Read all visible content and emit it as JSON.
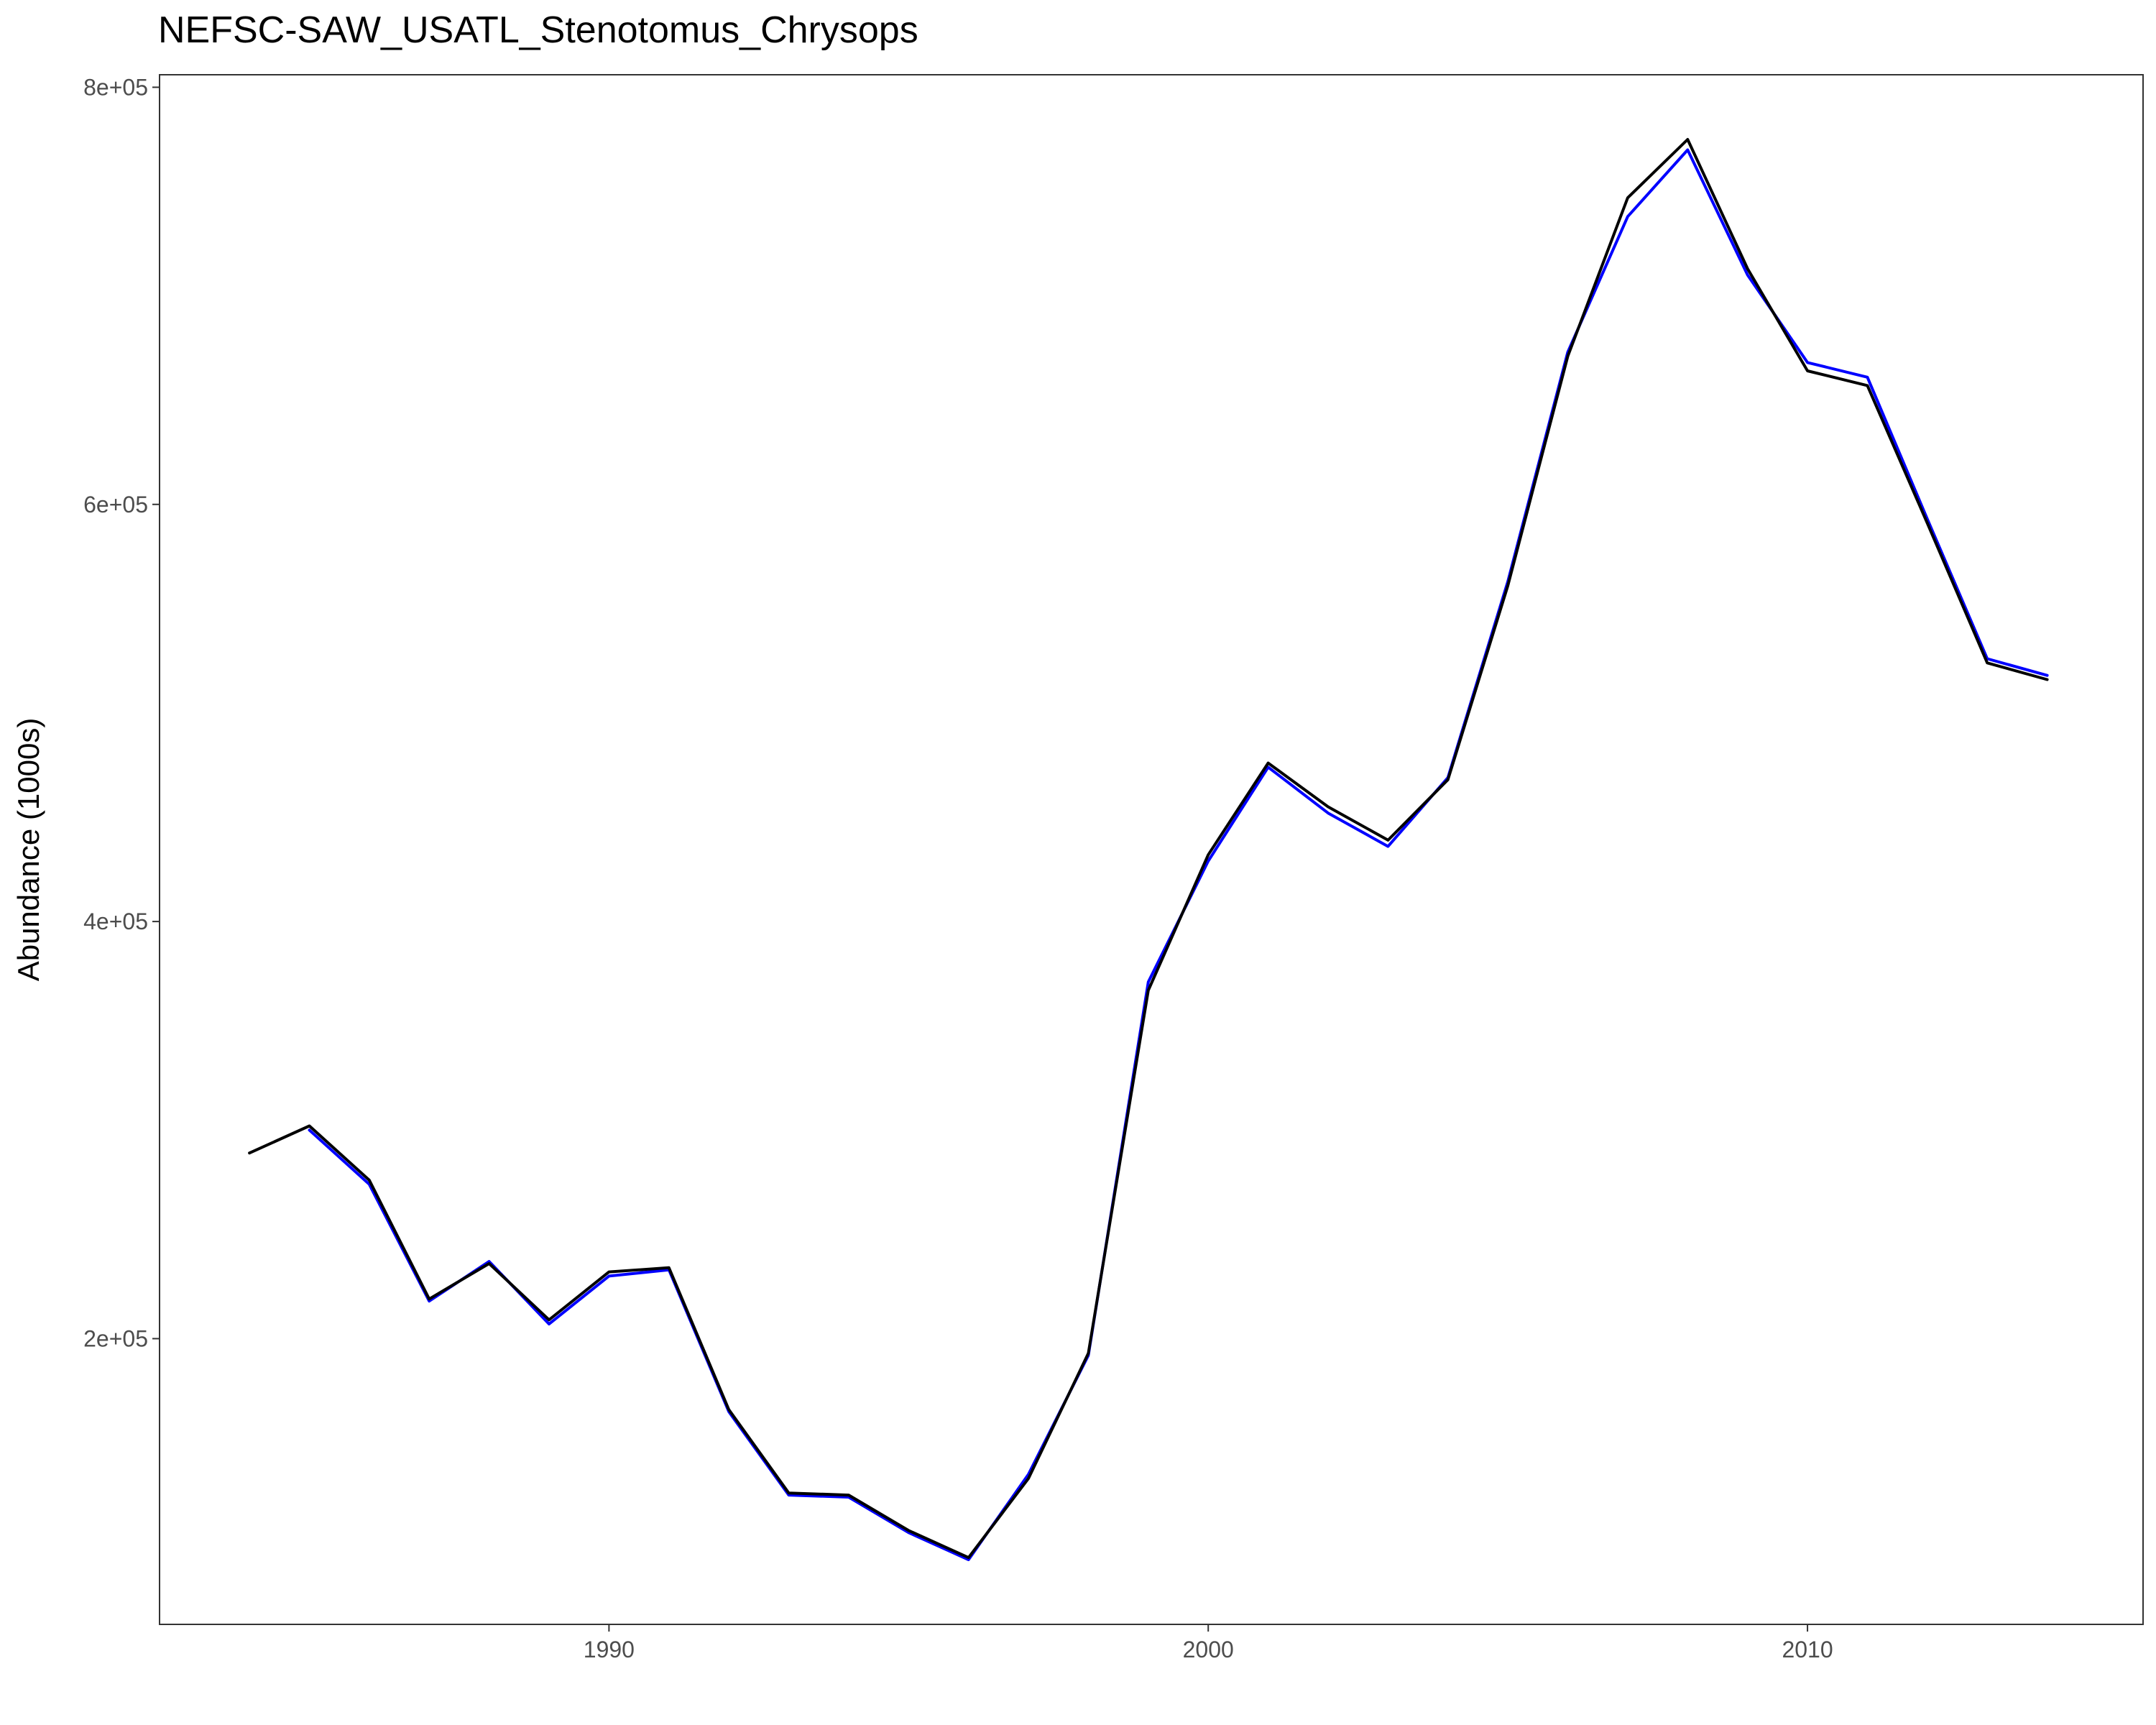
{
  "chart_data": {
    "type": "line",
    "title": "NEFSC-SAW_USATL_Stenotomus_Chrysops",
    "xlabel": "",
    "ylabel": "Abundance (1000s)",
    "xlim": [
      1982.5,
      2015.6
    ],
    "ylim": [
      63000,
      806000
    ],
    "x_ticks": [
      1990,
      2000,
      2010
    ],
    "x_tick_labels": [
      "1990",
      "2000",
      "2010"
    ],
    "y_ticks": [
      200000,
      400000,
      600000,
      800000
    ],
    "y_tick_labels": [
      "2e+05",
      "4e+05",
      "6e+05",
      "8e+05"
    ],
    "grid": false,
    "legend": "none",
    "series": [
      {
        "color": "#0000ff",
        "x": [
          1985,
          1986,
          1987,
          1988,
          1989,
          1990,
          1991,
          1992,
          1993,
          1994,
          1995,
          1996,
          1997,
          1998,
          1999,
          2000,
          2001,
          2002,
          2003,
          2004,
          2005,
          2006,
          2007,
          2008,
          2009,
          2010,
          2011,
          2012,
          2013,
          2014
        ],
        "values": [
          300000,
          274000,
          218000,
          237000,
          207000,
          230000,
          233000,
          165000,
          125000,
          124000,
          107000,
          94000,
          135000,
          192000,
          371000,
          429000,
          474000,
          452000,
          436000,
          469000,
          563000,
          673000,
          738000,
          770000,
          710000,
          668000,
          661000,
          593000,
          526000,
          518000
        ]
      },
      {
        "color": "#000000",
        "x": [
          1984,
          1985,
          1986,
          1987,
          1988,
          1989,
          1990,
          1991,
          1992,
          1993,
          1994,
          1995,
          1996,
          1997,
          1998,
          1999,
          2000,
          2001,
          2002,
          2003,
          2004,
          2005,
          2006,
          2007,
          2008,
          2009,
          2010,
          2011,
          2012,
          2013,
          2014
        ],
        "values": [
          289000,
          302000,
          276000,
          219000,
          236000,
          209000,
          232000,
          234000,
          166000,
          126000,
          125000,
          108000,
          95000,
          133000,
          193000,
          367000,
          432000,
          476000,
          455000,
          439000,
          468000,
          561000,
          671000,
          747000,
          775000,
          713000,
          664000,
          657000,
          591000,
          524000,
          516000
        ]
      }
    ]
  }
}
